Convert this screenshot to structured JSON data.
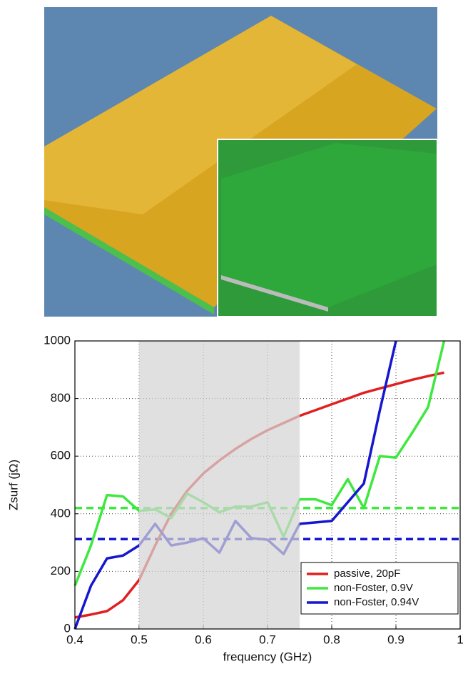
{
  "chart_data": {
    "type": "line",
    "xlabel": "frequency (GHz)",
    "ylabel": "Zsurf (jΩ)",
    "x": [
      0.4,
      0.425,
      0.45,
      0.475,
      0.5,
      0.525,
      0.55,
      0.575,
      0.6,
      0.625,
      0.65,
      0.675,
      0.7,
      0.725,
      0.75,
      0.775,
      0.8,
      0.825,
      0.85,
      0.875,
      0.9,
      0.925,
      0.95,
      0.975
    ],
    "series": [
      {
        "name": "passive, 20pF",
        "color": "#e02020",
        "values": [
          40,
          50,
          62,
          100,
          170,
          290,
          400,
          480,
          540,
          585,
          625,
          660,
          690,
          715,
          740,
          760,
          780,
          800,
          820,
          835,
          850,
          865,
          878,
          890
        ]
      },
      {
        "name": "non-Foster, 0.9V",
        "color": "#3ee83e",
        "values": [
          150,
          290,
          465,
          460,
          410,
          415,
          385,
          470,
          440,
          405,
          425,
          425,
          440,
          320,
          450,
          450,
          430,
          520,
          420,
          600,
          595,
          680,
          770,
          1000
        ]
      },
      {
        "name": "non-Foster, 0.94V",
        "color": "#1616d0",
        "values": [
          0,
          150,
          245,
          255,
          290,
          365,
          290,
          300,
          315,
          265,
          375,
          315,
          310,
          260,
          365,
          370,
          375,
          440,
          505,
          760,
          1000,
          null,
          null,
          null
        ]
      }
    ],
    "reference_lines": [
      {
        "value": 420,
        "color": "#3ee83e"
      },
      {
        "value": 312,
        "color": "#1616d0"
      }
    ],
    "highlight_xlim": [
      0.5,
      0.75
    ],
    "xlim": [
      0.4,
      1
    ],
    "ylim": [
      0,
      1000
    ],
    "xticks": [
      0.4,
      0.5,
      0.6,
      0.7,
      0.8,
      0.9,
      1
    ],
    "yticks": [
      0,
      200,
      400,
      600,
      800,
      1000
    ],
    "grid": true,
    "legend": "lower right"
  }
}
